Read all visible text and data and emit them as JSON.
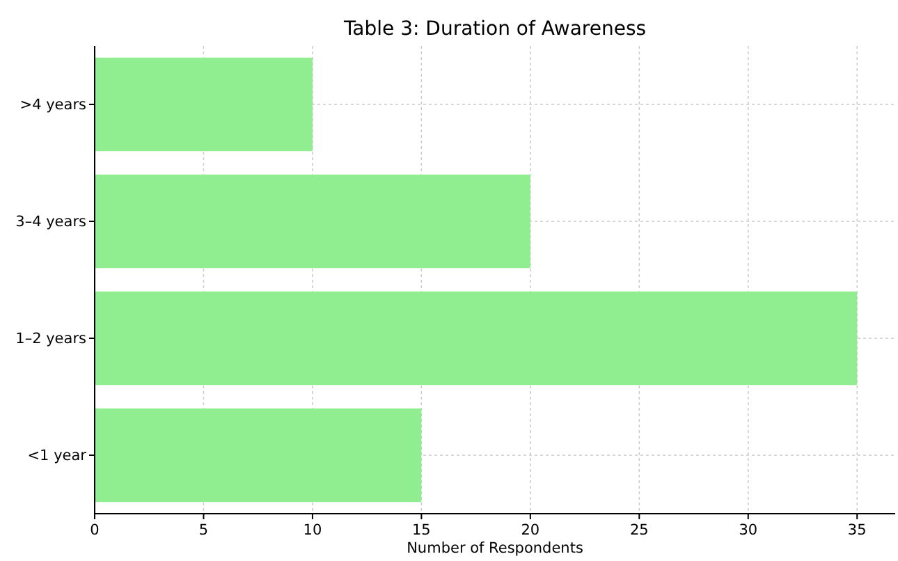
{
  "chart_data": {
    "type": "bar",
    "orientation": "horizontal",
    "title": "Table 3: Duration of Awareness",
    "xlabel": "Number of Respondents",
    "categories": [
      ">4 years",
      "3–4 years",
      "1–2 years",
      "<1 year"
    ],
    "values": [
      10,
      20,
      35,
      15
    ],
    "color": "#90ee90",
    "xlim": [
      0,
      36.75
    ],
    "xticks": [
      0,
      5,
      10,
      15,
      20,
      25,
      30,
      35
    ],
    "grid": true
  }
}
